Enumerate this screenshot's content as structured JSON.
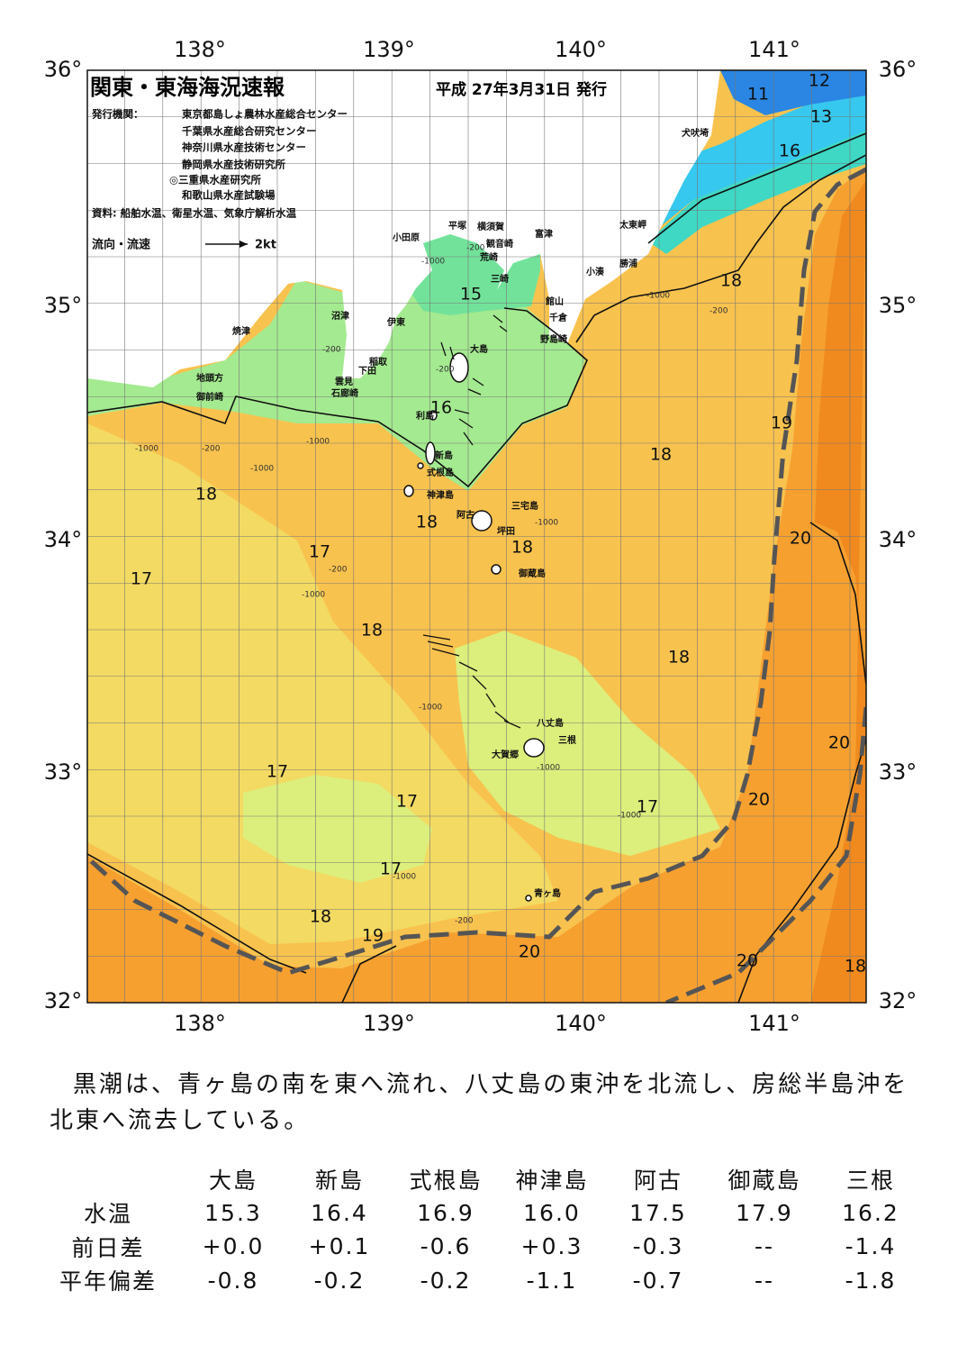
{
  "header": {
    "title": "関東・東海海況速報",
    "date": "平成 27年3月31日 発行"
  },
  "issuers": {
    "label": "発行機関：",
    "list": [
      "東京都島しょ農林水産総合センター",
      "千葉県水産総合研究センター",
      "神奈川県水産技術センター",
      "静岡県水産技術研究所",
      "◎三重県水産研究所",
      "和歌山県水産試験場"
    ]
  },
  "source": "資料: 船舶水温、衛星水温、気象庁解析水温",
  "legend": {
    "label": "流向・流速",
    "scale": "2kt"
  },
  "axes": {
    "lon": [
      "138°",
      "139°",
      "140°",
      "141°"
    ],
    "lat": [
      "36°",
      "35°",
      "34°",
      "33°",
      "32°"
    ]
  },
  "places": [
    "犬吠埼",
    "太東岬",
    "勝浦",
    "小湊",
    "富津",
    "館山",
    "千倉",
    "野島崎",
    "横須賀",
    "観音崎",
    "荒崎",
    "三崎",
    "平塚",
    "小田原",
    "沼津",
    "伊東",
    "焼津",
    "稲取",
    "下田",
    "雲見",
    "石廊崎",
    "地頭方",
    "御前崎",
    "大島",
    "利島",
    "新島",
    "式根島",
    "神津島",
    "三宅島",
    "阿古",
    "坪田",
    "御蔵島",
    "八丈島",
    "三根",
    "大賀郷",
    "青ヶ島"
  ],
  "isotherm_labels": [
    11,
    12,
    13,
    16,
    15,
    16,
    18,
    19,
    18,
    18,
    18,
    18,
    17,
    17,
    20,
    18,
    18,
    20,
    17,
    17,
    20,
    17,
    17,
    18,
    19,
    20,
    20,
    18
  ],
  "depth_labels": [
    "-200",
    "-1000",
    "-200",
    "-200",
    "-1000",
    "-200",
    "-1000",
    "-1000",
    "-200",
    "-1000",
    "-1000",
    "-1000",
    "-1000",
    "-200",
    "-1000",
    "-1000",
    "-200",
    "-1000"
  ],
  "summary": "黒潮は、青ヶ島の南を東へ流れ、八丈島の東沖を北流し、房総半島沖を北東へ流去している。",
  "table": {
    "header": [
      "大島",
      "新島",
      "式根島",
      "神津島",
      "阿古",
      "御蔵島",
      "三根"
    ],
    "rows": [
      [
        "水温",
        "15.3",
        "16.4",
        "16.9",
        "16.0",
        "17.5",
        "17.9",
        "16.2"
      ],
      [
        "前日差",
        "+0.0",
        "+0.1",
        "-0.6",
        "+0.3",
        "-0.3",
        "--",
        "-1.4"
      ],
      [
        "平年偏差",
        "-0.8",
        "-0.2",
        "-0.2",
        "-1.1",
        "-0.7",
        "--",
        "-1.8"
      ]
    ]
  }
}
